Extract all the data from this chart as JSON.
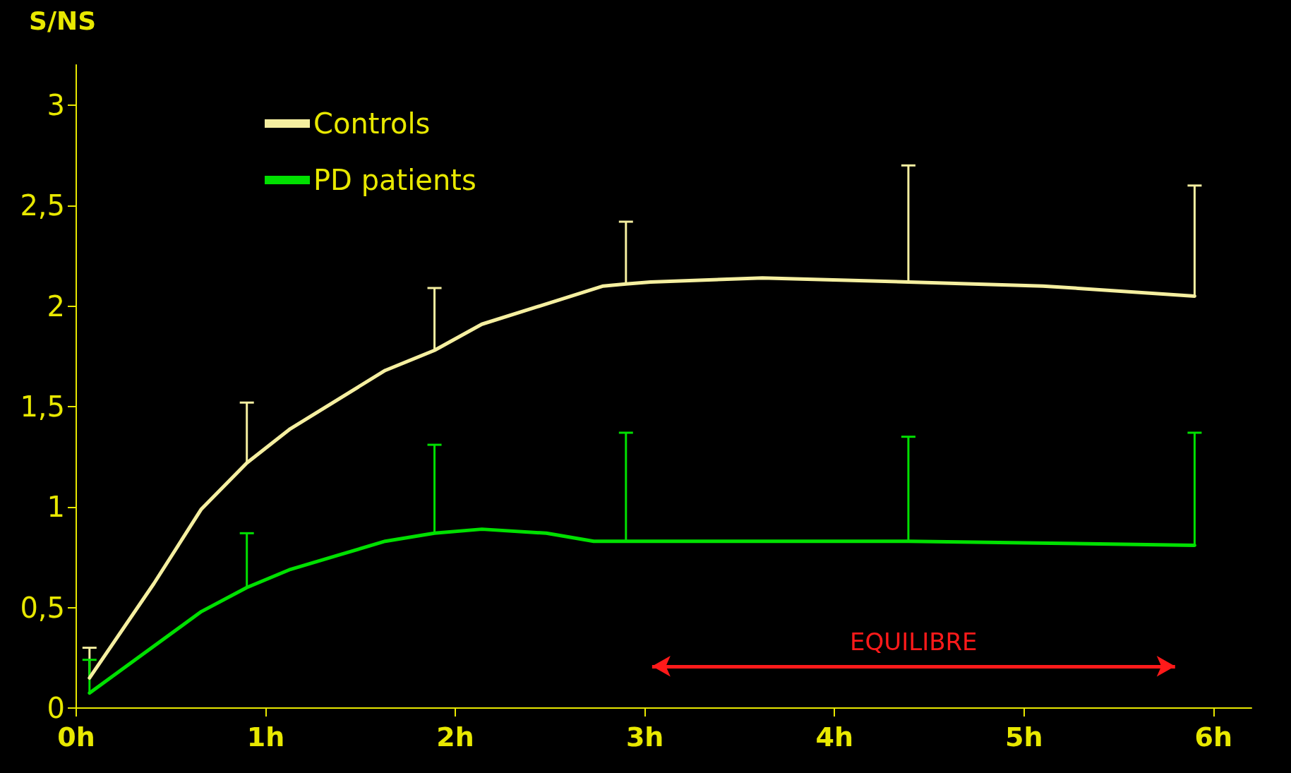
{
  "chart_data": {
    "type": "line",
    "ylabel": "S/NS",
    "xlim": [
      0,
      6.2
    ],
    "ylim": [
      0,
      3.2
    ],
    "xticks": [
      {
        "value": 0,
        "label": "0h"
      },
      {
        "value": 1,
        "label": "1h"
      },
      {
        "value": 2,
        "label": "2h"
      },
      {
        "value": 3,
        "label": "3h"
      },
      {
        "value": 4,
        "label": "4h"
      },
      {
        "value": 5,
        "label": "5h"
      },
      {
        "value": 6,
        "label": "6h"
      }
    ],
    "yticks": [
      0,
      {
        "value": 0.5,
        "label": "0,5"
      },
      1,
      {
        "value": 1.5,
        "label": "1,5"
      },
      2,
      {
        "value": 2.5,
        "label": "2,5"
      },
      3
    ],
    "series": [
      {
        "name": "Controls",
        "color": "#f5efa0",
        "x": [
          0.07,
          0.41,
          0.66,
          0.9,
          1.13,
          1.63,
          1.89,
          2.14,
          2.78,
          2.9,
          3.03,
          3.62,
          4.39,
          5.1,
          5.9
        ],
        "values": [
          0.15,
          0.62,
          0.99,
          1.22,
          1.39,
          1.68,
          1.78,
          1.91,
          2.1,
          2.11,
          2.12,
          2.14,
          2.12,
          2.1,
          2.05
        ],
        "errors": [
          [
            0.15,
            0.3
          ],
          null,
          null,
          [
            1.22,
            1.52
          ],
          null,
          null,
          [
            1.78,
            2.09
          ],
          null,
          null,
          [
            2.11,
            2.42
          ],
          null,
          null,
          [
            2.12,
            2.7
          ],
          null,
          [
            2.05,
            2.6
          ]
        ]
      },
      {
        "name": "PD patients",
        "color": "#00e000",
        "x": [
          0.07,
          0.66,
          0.9,
          1.13,
          1.38,
          1.63,
          1.89,
          2.14,
          2.48,
          2.73,
          2.9,
          4.39,
          5.9
        ],
        "values": [
          0.075,
          0.48,
          0.6,
          0.69,
          0.76,
          0.83,
          0.87,
          0.89,
          0.87,
          0.83,
          0.83,
          0.83,
          0.81
        ],
        "errors": [
          [
            0.075,
            0.24
          ],
          null,
          [
            0.6,
            0.87
          ],
          null,
          null,
          null,
          [
            0.87,
            1.31
          ],
          null,
          null,
          null,
          [
            0.83,
            1.37
          ],
          [
            0.83,
            1.35
          ],
          [
            0.81,
            1.37
          ]
        ]
      }
    ],
    "annotations": [
      "EQUILIBRE"
    ],
    "legend": "top left",
    "grid": false,
    "marker": "none",
    "line_style": "solid"
  }
}
